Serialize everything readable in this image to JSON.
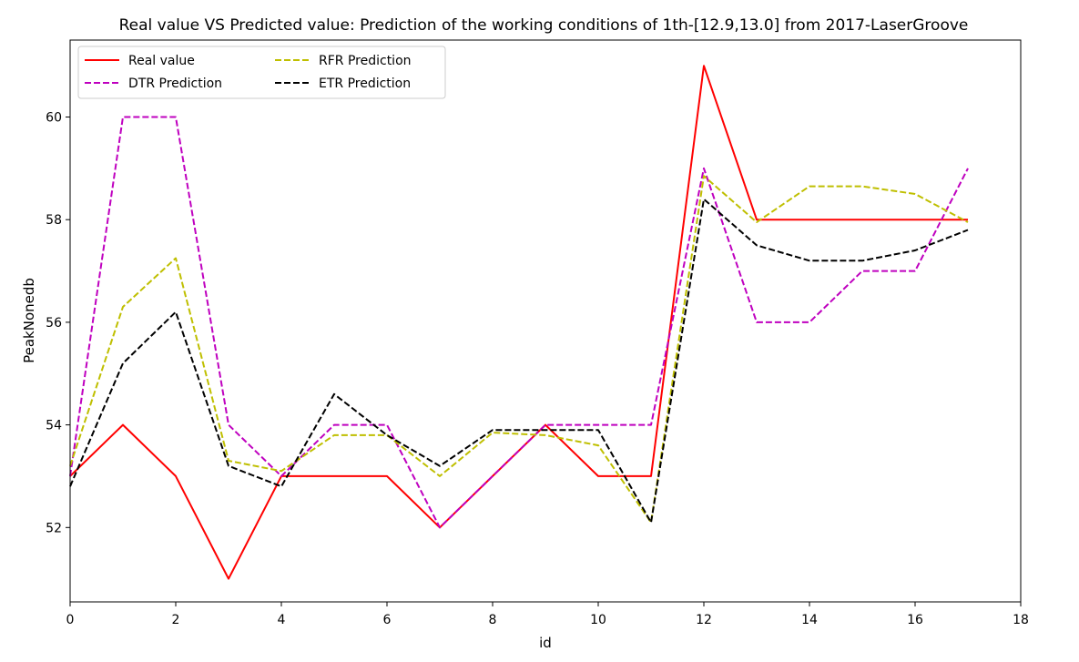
{
  "chart_data": {
    "type": "line",
    "title": "Real value VS Predicted value: Prediction of the working conditions of 1th-[12.9,13.0] from 2017-LaserGroove",
    "xlabel": "id",
    "ylabel": "PeakNonedb",
    "xlim": [
      0,
      18
    ],
    "ylim": [
      50.55,
      61.5
    ],
    "xticks": [
      "0",
      "2",
      "4",
      "6",
      "8",
      "10",
      "12",
      "14",
      "16",
      "18"
    ],
    "yticks": [
      "52",
      "54",
      "56",
      "58",
      "60"
    ],
    "grid": false,
    "legend_position": "upper-left",
    "x": [
      0,
      1,
      2,
      3,
      4,
      5,
      6,
      7,
      8,
      9,
      10,
      11,
      12,
      13,
      14,
      15,
      16,
      17
    ],
    "series": [
      {
        "name": "Real value",
        "color": "#ff0000",
        "style": "solid",
        "values": [
          53,
          54,
          53,
          51,
          53,
          53,
          53,
          52,
          53,
          54,
          53,
          53,
          61,
          58,
          58,
          58,
          58,
          58
        ]
      },
      {
        "name": "DTR Prediction",
        "color": "#bf00bf",
        "style": "dashed",
        "values": [
          53,
          60,
          60,
          54,
          53,
          54,
          54,
          52,
          53,
          54,
          54,
          54,
          59,
          56,
          56,
          57,
          57,
          59
        ]
      },
      {
        "name": "RFR Prediction",
        "color": "#bfbf00",
        "style": "dashed",
        "values": [
          53.2,
          56.3,
          57.25,
          53.3,
          53.1,
          53.8,
          53.8,
          53.0,
          53.85,
          53.8,
          53.6,
          52.1,
          58.85,
          57.95,
          58.65,
          58.65,
          58.5,
          57.95
        ]
      },
      {
        "name": "ETR Prediction",
        "color": "#000000",
        "style": "dashed",
        "values": [
          52.8,
          55.2,
          56.2,
          53.2,
          52.8,
          54.6,
          53.8,
          53.2,
          53.9,
          53.9,
          53.9,
          52.1,
          58.4,
          57.5,
          57.2,
          57.2,
          57.4,
          57.8
        ]
      }
    ],
    "legend_columns": [
      [
        "Real value",
        "DTR Prediction"
      ],
      [
        "RFR Prediction",
        "ETR Prediction"
      ]
    ]
  }
}
